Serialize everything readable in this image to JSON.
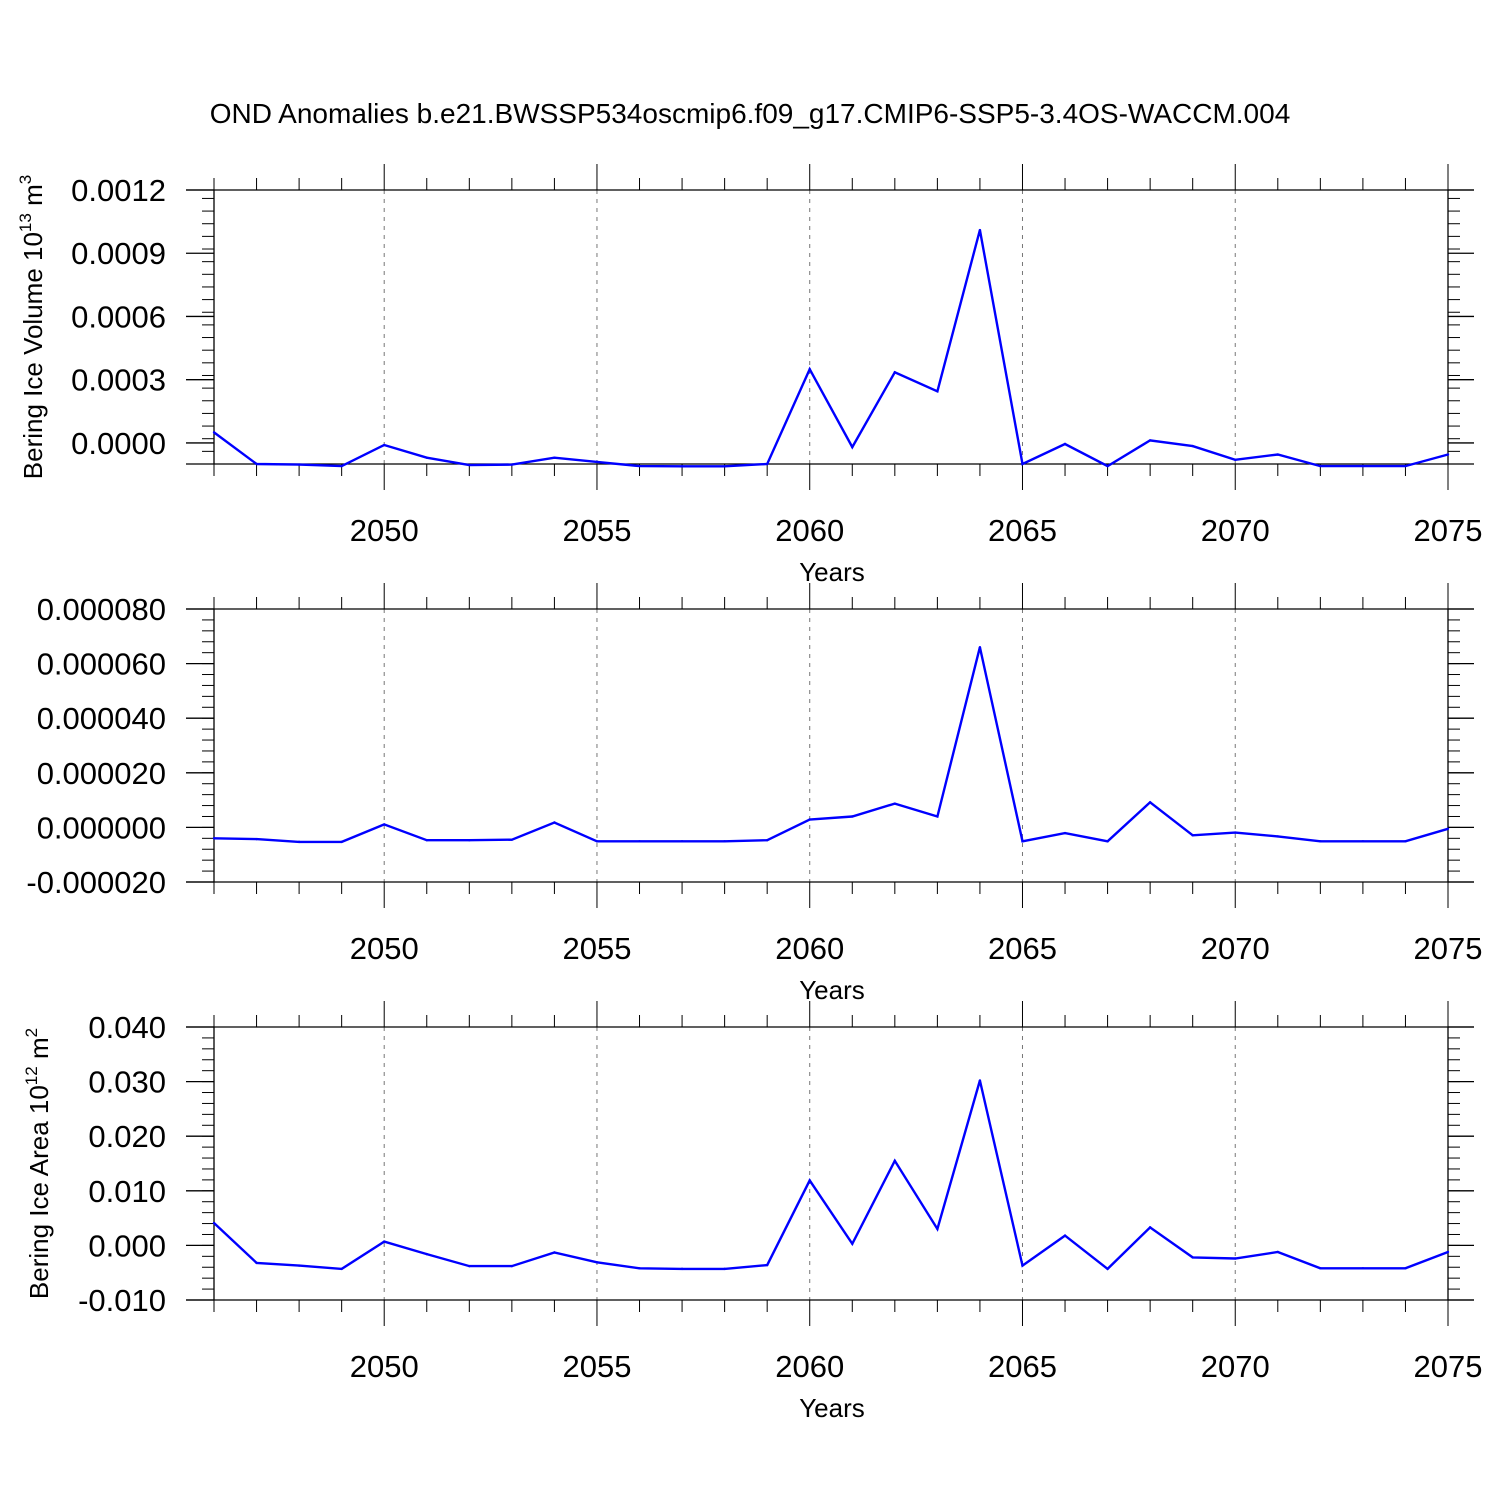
{
  "title": "OND Anomalies b.e21.BWSSP534oscmip6.f09_g17.CMIP6-SSP5-3.4OS-WACCM.004",
  "colors": {
    "line": "#0000ff",
    "axis": "#000000",
    "grid": "#777777"
  },
  "chart_data": [
    {
      "type": "line",
      "ylabel": "Bering Ice Volume 10",
      "ylabel_exp": "13",
      "ylabel_unit": " m",
      "ylabel_unit_exp": "3",
      "xlabel": "Years",
      "xlim": [
        2046,
        2075
      ],
      "ylim": [
        -0.0001,
        0.0012
      ],
      "yticks": [
        0.0,
        0.0003,
        0.0006,
        0.0009,
        0.0012
      ],
      "ytick_labels": [
        "0.0000",
        "0.0003",
        "0.0006",
        "0.0009",
        "0.0012"
      ],
      "xticks": [
        2050,
        2055,
        2060,
        2065,
        2070,
        2075
      ],
      "xtick_labels": [
        "2050",
        "2055",
        "2060",
        "2065",
        "2070",
        "2075"
      ],
      "grid": "vertical dashed at x ticks",
      "x": [
        2046,
        2047,
        2048,
        2049,
        2050,
        2051,
        2052,
        2053,
        2054,
        2055,
        2056,
        2057,
        2058,
        2059,
        2060,
        2061,
        2062,
        2063,
        2064,
        2065,
        2066,
        2067,
        2068,
        2069,
        2070,
        2071,
        2072,
        2073,
        2074,
        2075
      ],
      "values": [
        5e-05,
        -0.0001,
        -0.000103,
        -0.00011,
        -1e-05,
        -7e-05,
        -0.000105,
        -0.000103,
        -7e-05,
        -9e-05,
        -0.00011,
        -0.000111,
        -0.000111,
        -0.0001,
        0.00035,
        -2e-05,
        0.000335,
        0.000245,
        0.00101,
        -0.0001,
        -5e-06,
        -0.00011,
        1.2e-05,
        -1.5e-05,
        -8e-05,
        -5.5e-05,
        -0.00011,
        -0.00011,
        -0.00011,
        -5.5e-05
      ]
    },
    {
      "type": "line",
      "ylabel": "",
      "xlabel": "Years",
      "xlim": [
        2046,
        2075
      ],
      "ylim": [
        -2e-05,
        8e-05
      ],
      "yticks": [
        -2e-05,
        0.0,
        2e-05,
        4e-05,
        6e-05,
        8e-05
      ],
      "ytick_labels": [
        "-0.000020",
        "0.000000",
        "0.000020",
        "0.000040",
        "0.000060",
        "0.000080"
      ],
      "xticks": [
        2050,
        2055,
        2060,
        2065,
        2070,
        2075
      ],
      "xtick_labels": [
        "2050",
        "2055",
        "2060",
        "2065",
        "2070",
        "2075"
      ],
      "grid": "vertical dashed at x ticks",
      "x": [
        2046,
        2047,
        2048,
        2049,
        2050,
        2051,
        2052,
        2053,
        2054,
        2055,
        2056,
        2057,
        2058,
        2059,
        2060,
        2061,
        2062,
        2063,
        2064,
        2065,
        2066,
        2067,
        2068,
        2069,
        2070,
        2071,
        2072,
        2073,
        2074,
        2075
      ],
      "values": [
        -4e-06,
        -4.3e-06,
        -5.3e-06,
        -5.3e-06,
        1.1e-06,
        -4.7e-06,
        -4.7e-06,
        -4.5e-06,
        1.8e-06,
        -5.1e-06,
        -5.1e-06,
        -5.1e-06,
        -5.1e-06,
        -4.7e-06,
        2.9e-06,
        4e-06,
        8.7e-06,
        4e-06,
        6.6e-05,
        -5.1e-06,
        -2.1e-06,
        -5.1e-06,
        9.2e-06,
        -2.9e-06,
        -1.9e-06,
        -3.3e-06,
        -5.1e-06,
        -5.1e-06,
        -5.1e-06,
        -5e-07
      ]
    },
    {
      "type": "line",
      "ylabel": "Bering Ice Area 10",
      "ylabel_exp": "12",
      "ylabel_unit": " m",
      "ylabel_unit_exp": "2",
      "xlabel": "Years",
      "xlim": [
        2046,
        2075
      ],
      "ylim": [
        -0.01,
        0.04
      ],
      "yticks": [
        -0.01,
        0.0,
        0.01,
        0.02,
        0.03,
        0.04
      ],
      "ytick_labels": [
        "-0.010",
        "0.000",
        "0.010",
        "0.020",
        "0.030",
        "0.040"
      ],
      "xticks": [
        2050,
        2055,
        2060,
        2065,
        2070,
        2075
      ],
      "xtick_labels": [
        "2050",
        "2055",
        "2060",
        "2065",
        "2070",
        "2075"
      ],
      "grid": "vertical dashed at x ticks",
      "x": [
        2046,
        2047,
        2048,
        2049,
        2050,
        2051,
        2052,
        2053,
        2054,
        2055,
        2056,
        2057,
        2058,
        2059,
        2060,
        2061,
        2062,
        2063,
        2064,
        2065,
        2066,
        2067,
        2068,
        2069,
        2070,
        2071,
        2072,
        2073,
        2074,
        2075
      ],
      "values": [
        0.0041,
        -0.0032,
        -0.0037,
        -0.0043,
        0.0007,
        -0.0016,
        -0.0038,
        -0.0038,
        -0.0013,
        -0.0031,
        -0.0042,
        -0.0043,
        -0.0043,
        -0.0036,
        0.0119,
        0.0003,
        0.0155,
        0.003,
        0.0302,
        -0.0037,
        0.0018,
        -0.0043,
        0.0033,
        -0.0022,
        -0.0024,
        -0.0012,
        -0.0042,
        -0.0042,
        -0.0042,
        -0.0012
      ]
    }
  ]
}
